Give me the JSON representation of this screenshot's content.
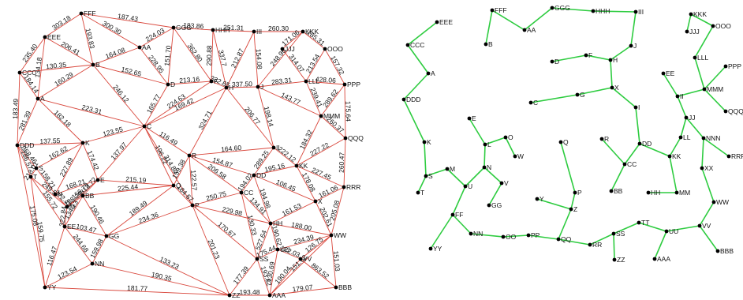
{
  "colors": {
    "network_edge": "#d9473c",
    "tree_edge": "#2ecc40",
    "node": "#000000",
    "background": "#ffffff"
  },
  "left_panel": {
    "nodes": [
      {
        "id": "EEE",
        "label": "EEE"
      },
      {
        "id": "FFF",
        "label": "FFF"
      },
      {
        "id": "GGG",
        "label": "GGG"
      },
      {
        "id": "HHH",
        "label": "HHH"
      },
      {
        "id": "III",
        "label": "III"
      },
      {
        "id": "KKK",
        "label": "KKK"
      },
      {
        "id": "OOO",
        "label": "OOO"
      },
      {
        "id": "JJJ",
        "label": "JJJ"
      },
      {
        "id": "B",
        "label": "B"
      },
      {
        "id": "AA",
        "label": "AA"
      },
      {
        "id": "CCC",
        "label": "CCC"
      },
      {
        "id": "D",
        "label": "D"
      },
      {
        "id": "F",
        "label": "F"
      },
      {
        "id": "H",
        "label": "H"
      },
      {
        "id": "J",
        "label": "J"
      },
      {
        "id": "LLL",
        "label": "LLL"
      },
      {
        "id": "PPP",
        "label": "PPP"
      },
      {
        "id": "A",
        "label": "A"
      },
      {
        "id": "MMM",
        "label": "MMM"
      },
      {
        "id": "DDD",
        "label": "DDD"
      },
      {
        "id": "C",
        "label": "C"
      },
      {
        "id": "QQQ",
        "label": "QQQ"
      },
      {
        "id": "K",
        "label": "K"
      },
      {
        "id": "RRR",
        "label": "RRR"
      },
      {
        "id": "S",
        "label": "S"
      },
      {
        "id": "T",
        "label": "T"
      },
      {
        "id": "BB",
        "label": "BB"
      },
      {
        "id": "EE",
        "label": "EE"
      },
      {
        "id": "GG",
        "label": "GG"
      },
      {
        "id": "WW",
        "label": "WW"
      },
      {
        "id": "YY",
        "label": "YY"
      },
      {
        "id": "NN",
        "label": "NN"
      },
      {
        "id": "VV",
        "label": "VV"
      },
      {
        "id": "ZZ",
        "label": "ZZ"
      },
      {
        "id": "AAA",
        "label": "AAA"
      },
      {
        "id": "BBB",
        "label": "BBB"
      },
      {
        "id": "X",
        "label": "X"
      },
      {
        "id": "M",
        "label": "M"
      },
      {
        "id": "N",
        "label": "N"
      },
      {
        "id": "Q",
        "label": "Q"
      },
      {
        "id": "R",
        "label": "R"
      },
      {
        "id": "P",
        "label": "P"
      },
      {
        "id": "CC",
        "label": "CC"
      },
      {
        "id": "DD",
        "label": "DD"
      },
      {
        "id": "HH",
        "label": "HH"
      },
      {
        "id": "SS",
        "label": "SS"
      },
      {
        "id": "UU",
        "label": "UU"
      },
      {
        "id": "II",
        "label": "II"
      },
      {
        "id": "KK",
        "label": "KK"
      },
      {
        "id": "E",
        "label": "E"
      }
    ],
    "weights": [
      "303.18",
      "187.43",
      "183.86",
      "251.31",
      "260.30",
      "185.31",
      "157.32",
      "175.64",
      "260.47",
      "205.08",
      "151.03",
      "179.07",
      "193.48",
      "181.77",
      "175.08",
      "183.49",
      "235.40",
      "206.41",
      "193.83",
      "300.30",
      "164.08",
      "224.03",
      "228.95",
      "151.70",
      "362.80",
      "290.88",
      "337.7",
      "212.87",
      "154.08",
      "248.96",
      "171.06",
      "314.07",
      "213.54",
      "428.06",
      "283.31",
      "337.50",
      "332.65",
      "213.16",
      "130.35",
      "184.14",
      "160.29",
      "281.39",
      "246.12",
      "152.65",
      "165.77",
      "224.63",
      "169.42",
      "206.77",
      "198.14",
      "143.77",
      "239.41",
      "289.62",
      "260.37",
      "184.32",
      "222.12",
      "227.22",
      "227.45",
      "178.08",
      "161.06",
      "202.61",
      "289.25",
      "195.16",
      "106.45",
      "116.49",
      "324.71",
      "164.60",
      "154.87",
      "223.31",
      "182.18",
      "137.55",
      "123.55",
      "358.46",
      "162.62",
      "218.01",
      "186.57",
      "174.42",
      "137.97",
      "215.19",
      "196.22",
      "159.38",
      "122.57",
      "184.67",
      "250.75",
      "194.02",
      "206.58",
      "134.91",
      "194.98",
      "161.53",
      "188.00",
      "190.62",
      "234.39",
      "130.69",
      "175.44",
      "177.39",
      "193.82",
      "170.67",
      "201.23",
      "234.36",
      "133.23",
      "159.98",
      "190.35",
      "123.54",
      "116.47",
      "244.68",
      "103.47",
      "249.57",
      "172.43",
      "158.21",
      "168.21",
      "188.29",
      "313.72",
      "225.44",
      "190.46",
      "322.84",
      "134.13",
      "159.75",
      "155.72",
      "227.89",
      "189.49",
      "229.98",
      "151.62",
      "527.64",
      "130.33",
      "122.03",
      "126.75",
      "863.52",
      "190.04",
      "314.80",
      "134.18",
      "156.79",
      "129.45",
      "148.20",
      "211.42",
      "235.11",
      "203.44",
      "128.38",
      "206.24",
      "184.60",
      "135.97",
      "159.91",
      "176.33"
    ]
  },
  "right_panel": {
    "nodes": [
      {
        "id": "EEE",
        "label": "EEE"
      },
      {
        "id": "FFF",
        "label": "FFF"
      },
      {
        "id": "GGG",
        "label": "GGG"
      },
      {
        "id": "HHH",
        "label": "HHH"
      },
      {
        "id": "III",
        "label": "III"
      },
      {
        "id": "KKK",
        "label": "KKK"
      },
      {
        "id": "OOO",
        "label": "OOO"
      },
      {
        "id": "JJJ",
        "label": "JJJ"
      },
      {
        "id": "B",
        "label": "B"
      },
      {
        "id": "AA",
        "label": "AA"
      },
      {
        "id": "CCC",
        "label": "CCC"
      },
      {
        "id": "D",
        "label": "D"
      },
      {
        "id": "F",
        "label": "F"
      },
      {
        "id": "H",
        "label": "H"
      },
      {
        "id": "J",
        "label": "J"
      },
      {
        "id": "LLL",
        "label": "LLL"
      },
      {
        "id": "PPP",
        "label": "PPP"
      },
      {
        "id": "A",
        "label": "A"
      },
      {
        "id": "EE",
        "label": "EE"
      },
      {
        "id": "MMM",
        "label": "MMM"
      },
      {
        "id": "DDD",
        "label": "DDD"
      },
      {
        "id": "X",
        "label": "X"
      },
      {
        "id": "II",
        "label": "II"
      },
      {
        "id": "C",
        "label": "C"
      },
      {
        "id": "G",
        "label": "G"
      },
      {
        "id": "QQQ",
        "label": "QQQ"
      },
      {
        "id": "I",
        "label": "I"
      },
      {
        "id": "E",
        "label": "E"
      },
      {
        "id": "JJ",
        "label": "JJ"
      },
      {
        "id": "L",
        "label": "L"
      },
      {
        "id": "O",
        "label": "O"
      },
      {
        "id": "Q",
        "label": "Q"
      },
      {
        "id": "LL",
        "label": "LL"
      },
      {
        "id": "NNN",
        "label": "NNN"
      },
      {
        "id": "W",
        "label": "W"
      },
      {
        "id": "R",
        "label": "R"
      },
      {
        "id": "DD",
        "label": "DD"
      },
      {
        "id": "K",
        "label": "K"
      },
      {
        "id": "KK",
        "label": "KK"
      },
      {
        "id": "RRR",
        "label": "RRR"
      },
      {
        "id": "CC",
        "label": "CC"
      },
      {
        "id": "XX",
        "label": "XX"
      },
      {
        "id": "S",
        "label": "S"
      },
      {
        "id": "M",
        "label": "M"
      },
      {
        "id": "N",
        "label": "N"
      },
      {
        "id": "P",
        "label": "P"
      },
      {
        "id": "V",
        "label": "V"
      },
      {
        "id": "T",
        "label": "T"
      },
      {
        "id": "U",
        "label": "U"
      },
      {
        "id": "BB",
        "label": "BB"
      },
      {
        "id": "HH",
        "label": "HH"
      },
      {
        "id": "MM",
        "label": "MM"
      },
      {
        "id": "GG",
        "label": "GG"
      },
      {
        "id": "Y",
        "label": "Y"
      },
      {
        "id": "WW",
        "label": "WW"
      },
      {
        "id": "Z",
        "label": "Z"
      },
      {
        "id": "FF",
        "label": "FF"
      },
      {
        "id": "TT",
        "label": "TT"
      },
      {
        "id": "VV",
        "label": "VV"
      },
      {
        "id": "UU",
        "label": "UU"
      },
      {
        "id": "SS",
        "label": "SS"
      },
      {
        "id": "NN",
        "label": "NN"
      },
      {
        "id": "OO",
        "label": "OO"
      },
      {
        "id": "PP",
        "label": "PP"
      },
      {
        "id": "QQ",
        "label": "QQ"
      },
      {
        "id": "RR",
        "label": "RR"
      },
      {
        "id": "YY",
        "label": "YY"
      },
      {
        "id": "ZZ",
        "label": "ZZ"
      },
      {
        "id": "AAA",
        "label": "AAA"
      },
      {
        "id": "BBB",
        "label": "BBB"
      }
    ],
    "edges": [
      [
        "EEE",
        "CCC"
      ],
      [
        "CCC",
        "A"
      ],
      [
        "A",
        "DDD"
      ],
      [
        "DDD",
        "K"
      ],
      [
        "K",
        "S"
      ],
      [
        "S",
        "T"
      ],
      [
        "S",
        "M"
      ],
      [
        "M",
        "U"
      ],
      [
        "FFF",
        "B"
      ],
      [
        "FFF",
        "AA"
      ],
      [
        "AA",
        "GGG"
      ],
      [
        "GGG",
        "HHH"
      ],
      [
        "HHH",
        "III"
      ],
      [
        "III",
        "J"
      ],
      [
        "J",
        "H"
      ],
      [
        "D",
        "F"
      ],
      [
        "F",
        "H"
      ],
      [
        "H",
        "X"
      ],
      [
        "X",
        "G"
      ],
      [
        "G",
        "C"
      ],
      [
        "X",
        "I"
      ],
      [
        "I",
        "DD"
      ],
      [
        "DD",
        "CC"
      ],
      [
        "CC",
        "R"
      ],
      [
        "CC",
        "BB"
      ],
      [
        "DD",
        "KK"
      ],
      [
        "KK",
        "MM"
      ],
      [
        "MM",
        "HH"
      ],
      [
        "KK",
        "LL"
      ],
      [
        "LL",
        "JJ"
      ],
      [
        "JJ",
        "II"
      ],
      [
        "II",
        "EE"
      ],
      [
        "II",
        "MMM"
      ],
      [
        "MMM",
        "PPP"
      ],
      [
        "MMM",
        "QQQ"
      ],
      [
        "MMM",
        "LLL"
      ],
      [
        "LLL",
        "OOO"
      ],
      [
        "OOO",
        "KKK"
      ],
      [
        "KKK",
        "JJJ"
      ],
      [
        "JJ",
        "NNN"
      ],
      [
        "NNN",
        "RRR"
      ],
      [
        "NNN",
        "XX"
      ],
      [
        "XX",
        "WW"
      ],
      [
        "WW",
        "VV"
      ],
      [
        "VV",
        "BBB"
      ],
      [
        "VV",
        "UU"
      ],
      [
        "UU",
        "TT"
      ],
      [
        "UU",
        "AAA"
      ],
      [
        "TT",
        "SS"
      ],
      [
        "SS",
        "ZZ"
      ],
      [
        "SS",
        "RR"
      ],
      [
        "RR",
        "QQ"
      ],
      [
        "QQ",
        "Z"
      ],
      [
        "Z",
        "Y"
      ],
      [
        "Z",
        "P"
      ],
      [
        "P",
        "Q"
      ],
      [
        "QQ",
        "PP"
      ],
      [
        "PP",
        "OO"
      ],
      [
        "OO",
        "NN"
      ],
      [
        "NN",
        "FF"
      ],
      [
        "FF",
        "YY"
      ],
      [
        "FF",
        "U"
      ],
      [
        "U",
        "N"
      ],
      [
        "N",
        "V"
      ],
      [
        "V",
        "GG"
      ],
      [
        "N",
        "L"
      ],
      [
        "L",
        "E"
      ],
      [
        "L",
        "O"
      ],
      [
        "O",
        "W"
      ]
    ]
  }
}
